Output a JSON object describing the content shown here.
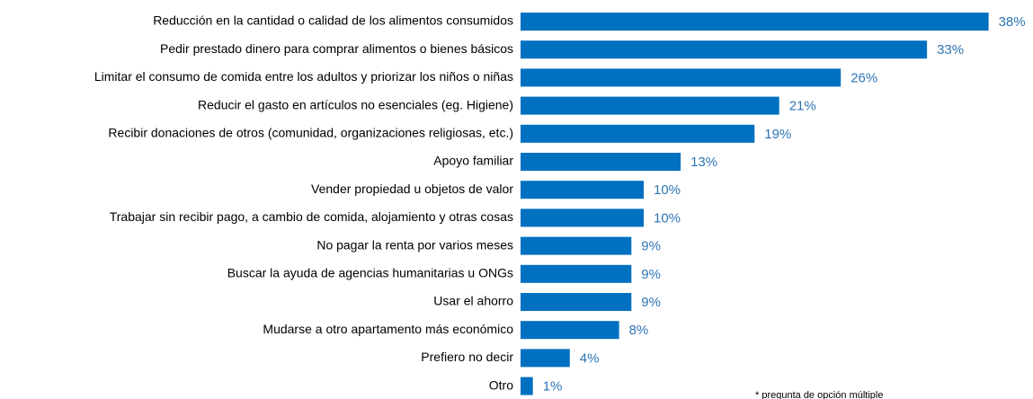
{
  "chart_data": {
    "type": "bar",
    "orientation": "horizontal",
    "categories": [
      "Reducción en la cantidad o calidad de los alimentos consumidos",
      "Pedir prestado dinero para comprar alimentos o bienes básicos",
      "Limitar el consumo de comida entre los adultos y priorizar los niños o niñas",
      "Reducir el gasto en artículos no esenciales (eg. Higiene)",
      "Recibir donaciones de otros (comunidad, organizaciones religiosas, etc.)",
      "Apoyo familiar",
      "Vender propiedad u objetos de valor",
      "Trabajar sin recibir pago, a cambio de comida, alojamiento y otras cosas",
      "No pagar la renta por varios meses",
      "Buscar la ayuda de agencias humanitarias u ONGs",
      "Usar el ahorro",
      "Mudarse a otro apartamento más económico",
      "Prefiero no decir",
      "Otro"
    ],
    "values": [
      38,
      33,
      26,
      21,
      19,
      13,
      10,
      10,
      9,
      9,
      9,
      8,
      4,
      1
    ],
    "value_labels": [
      "38%",
      "33%",
      "26%",
      "21%",
      "19%",
      "13%",
      "10%",
      "10%",
      "9%",
      "9%",
      "9%",
      "8%",
      "4%",
      "1%"
    ],
    "color": "#0070c0",
    "annotation": "* pregunta de opción múltiple"
  }
}
